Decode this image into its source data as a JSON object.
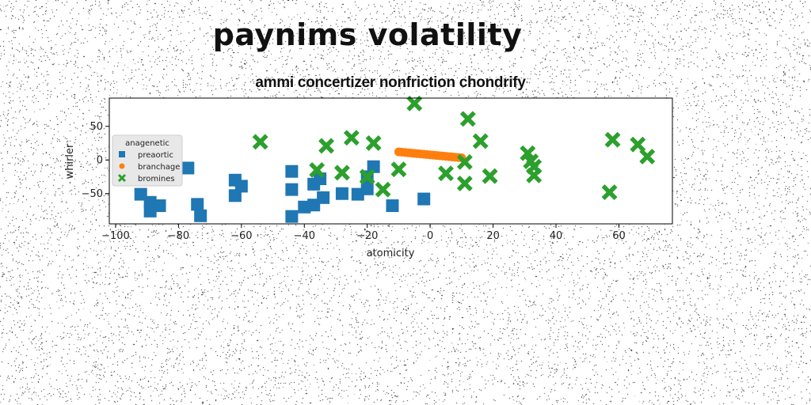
{
  "suptitle": "paynims volatility",
  "chart_data": {
    "type": "scatter",
    "title": "ammi concertizer nonfriction chondrify",
    "xlabel": "atomicity",
    "ylabel": "whirler",
    "xlim": [
      -102,
      77
    ],
    "ylim": [
      -95,
      92
    ],
    "xticks": [
      -100,
      -80,
      -60,
      -40,
      -20,
      0,
      20,
      40,
      60
    ],
    "yticks": [
      50,
      0,
      -50
    ],
    "grid": false,
    "legend": {
      "title": "anagenetic",
      "placement": "center-left"
    },
    "series": [
      {
        "name": "preaortic",
        "color": "#1f77b4",
        "marker": "square",
        "points": [
          [
            -92,
            -51
          ],
          [
            -89,
            -63
          ],
          [
            -89,
            -76
          ],
          [
            -86,
            -68
          ],
          [
            -77,
            -12
          ],
          [
            -74,
            -66
          ],
          [
            -73,
            -83
          ],
          [
            -62,
            -30
          ],
          [
            -62,
            -53
          ],
          [
            -60,
            -39
          ],
          [
            -44,
            -44
          ],
          [
            -44,
            -17
          ],
          [
            -44,
            -84
          ],
          [
            -40,
            -70
          ],
          [
            -37,
            -36
          ],
          [
            -37,
            -67
          ],
          [
            -35,
            -28
          ],
          [
            -34,
            -56
          ],
          [
            -28,
            -50
          ],
          [
            -23,
            -51
          ],
          [
            -20,
            -43
          ],
          [
            -20,
            -25
          ],
          [
            -18,
            -10
          ],
          [
            -12,
            -68
          ],
          [
            -2,
            -58
          ]
        ]
      },
      {
        "name": "branchage",
        "color": "#ff7f0e",
        "marker": "circle",
        "points": [
          [
            -10,
            12
          ],
          [
            -9,
            11.6
          ],
          [
            -8,
            11.2
          ],
          [
            -7,
            10.7
          ],
          [
            -6,
            10.3
          ],
          [
            -5,
            9.8
          ],
          [
            -4,
            9.4
          ],
          [
            -3,
            9.0
          ],
          [
            -2,
            8.5
          ],
          [
            -1,
            8.1
          ],
          [
            0,
            7.6
          ],
          [
            1,
            7.2
          ],
          [
            2,
            6.8
          ],
          [
            3,
            6.3
          ],
          [
            4,
            5.9
          ],
          [
            5,
            5.4
          ],
          [
            6,
            5.0
          ],
          [
            7,
            4.6
          ],
          [
            8,
            4.1
          ],
          [
            9,
            3.7
          ],
          [
            10,
            3.2
          ]
        ]
      },
      {
        "name": "bromines",
        "color": "#2ca02c",
        "marker": "x",
        "points": [
          [
            -54,
            27
          ],
          [
            -36,
            -15
          ],
          [
            -33,
            21
          ],
          [
            -28,
            -19
          ],
          [
            -25,
            33
          ],
          [
            -20,
            -25
          ],
          [
            -18,
            25
          ],
          [
            -15,
            -44
          ],
          [
            -10,
            -14
          ],
          [
            -5,
            84
          ],
          [
            5,
            -20
          ],
          [
            11,
            -35
          ],
          [
            11,
            -3
          ],
          [
            12,
            61
          ],
          [
            16,
            28
          ],
          [
            19,
            -24
          ],
          [
            31,
            10
          ],
          [
            32,
            -2
          ],
          [
            33,
            -10
          ],
          [
            33,
            -23
          ],
          [
            57,
            -48
          ],
          [
            58,
            30
          ],
          [
            66,
            23
          ],
          [
            69,
            5
          ]
        ]
      }
    ]
  }
}
